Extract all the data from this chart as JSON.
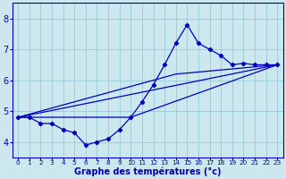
{
  "title": "Graphe des températures (°c)",
  "bg_color": "#cce8ee",
  "grid_color": "#9ecfda",
  "line_color": "#0000bb",
  "x_hours": [
    0,
    1,
    2,
    3,
    4,
    5,
    6,
    7,
    8,
    9,
    10,
    11,
    12,
    13,
    14,
    15,
    16,
    17,
    18,
    19,
    20,
    21,
    22,
    23
  ],
  "y_temp": [
    4.8,
    4.8,
    4.6,
    4.6,
    4.4,
    4.3,
    3.9,
    4.0,
    4.1,
    4.4,
    4.8,
    5.3,
    5.85,
    6.5,
    7.2,
    7.8,
    7.2,
    7.0,
    6.8,
    6.5,
    6.55,
    6.5,
    6.5,
    6.5
  ],
  "trend1_x": [
    0,
    10,
    23
  ],
  "trend1_y": [
    4.8,
    4.8,
    6.5
  ],
  "trend2_x": [
    0,
    14,
    23
  ],
  "trend2_y": [
    4.8,
    6.2,
    6.5
  ],
  "trend3_x": [
    0,
    23
  ],
  "trend3_y": [
    4.8,
    6.5
  ],
  "ylim": [
    3.5,
    8.5
  ],
  "yticks": [
    4,
    5,
    6,
    7,
    8
  ],
  "yticklabels": [
    "4",
    "5",
    "6",
    "7",
    "8"
  ],
  "xlim": [
    -0.5,
    23.5
  ],
  "xtick_labels": [
    "0",
    "1",
    "2",
    "3",
    "4",
    "5",
    "6",
    "7",
    "8",
    "9",
    "10",
    "11",
    "12",
    "13",
    "14",
    "15",
    "16",
    "17",
    "18",
    "19",
    "20",
    "21",
    "22",
    "23"
  ]
}
